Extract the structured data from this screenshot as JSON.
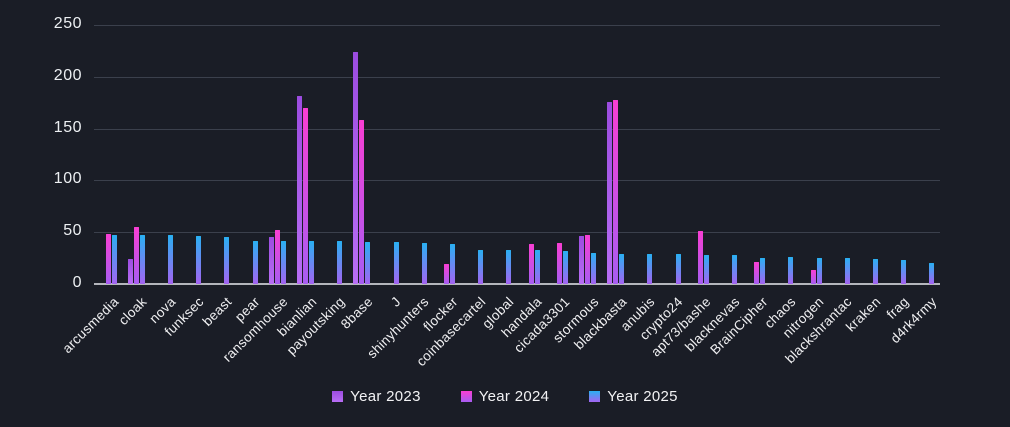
{
  "chart_data": {
    "type": "bar",
    "title": "",
    "xlabel": "",
    "ylabel": "",
    "ylim": [
      0,
      250
    ],
    "yticks": [
      0,
      50,
      100,
      150,
      200,
      250
    ],
    "grid": true,
    "legend_position": "bottom",
    "background_color": "#1a1d26",
    "gridline_color": "#3b404c",
    "axis_line_color": "#b4b6bc",
    "text_color": "#f0f0f2",
    "categories": [
      "arcusmedia",
      "cloak",
      "nova",
      "funksec",
      "beast",
      "pear",
      "ransomhouse",
      "bianlian",
      "payoutsking",
      "8base",
      "J",
      "shinyhunters",
      "flocker",
      "coinbasecartel",
      "global",
      "handala",
      "cicada3301",
      "stormous",
      "blackbasta",
      "anubis",
      "crypto24",
      "apt73/bashe",
      "blacknevas",
      "BrainCipher",
      "chaos",
      "nitrogen",
      "blackshrantac",
      "kraken",
      "frag",
      "d4rk4rmy"
    ],
    "series": [
      {
        "name": "Year 2023",
        "color": "#a35ce8",
        "color_top": "#9c4ce0",
        "color_bottom": "#b86ef5",
        "values": [
          null,
          24,
          null,
          null,
          null,
          null,
          45,
          181,
          null,
          224,
          null,
          null,
          null,
          null,
          null,
          null,
          null,
          46,
          176,
          null,
          null,
          null,
          null,
          null,
          null,
          null,
          null,
          null,
          null,
          null
        ]
      },
      {
        "name": "Year 2024",
        "color": "#ee3ed2",
        "color_top": "#f93ed3",
        "color_bottom": "#a75df2",
        "values": [
          48,
          55,
          null,
          null,
          null,
          null,
          52,
          170,
          null,
          158,
          null,
          null,
          19,
          null,
          null,
          39,
          40,
          47,
          178,
          null,
          null,
          51,
          null,
          21,
          null,
          14,
          null,
          null,
          null,
          null
        ]
      },
      {
        "name": "Year 2025",
        "color": "#41a5ef",
        "color_top": "#29b0f2",
        "color_bottom": "#a464f2",
        "values": [
          47,
          47,
          47,
          46,
          45,
          42,
          42,
          42,
          42,
          41,
          41,
          40,
          39,
          33,
          33,
          33,
          32,
          30,
          29,
          29,
          29,
          28,
          28,
          25,
          26,
          25,
          25,
          24,
          23,
          20
        ]
      }
    ]
  }
}
